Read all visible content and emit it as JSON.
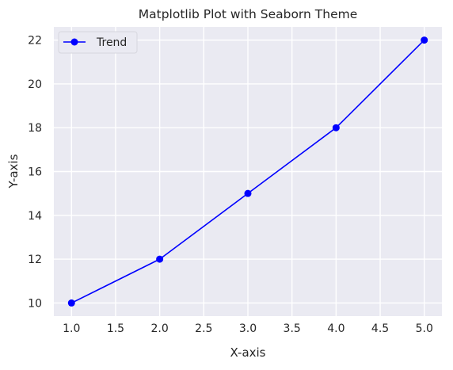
{
  "chart_data": {
    "type": "line",
    "title": "Matplotlib Plot with Seaborn Theme",
    "xlabel": "X-axis",
    "ylabel": "Y-axis",
    "x": [
      1,
      2,
      3,
      4,
      5
    ],
    "series": [
      {
        "name": "Trend",
        "values": [
          10,
          12,
          15,
          18,
          22
        ],
        "color": "#0000ff",
        "marker": "circle"
      }
    ],
    "xlim": [
      0.8,
      5.2
    ],
    "ylim": [
      9.4,
      22.6
    ],
    "xticks": [
      "1.0",
      "1.5",
      "2.0",
      "2.5",
      "3.0",
      "3.5",
      "4.0",
      "4.5",
      "5.0"
    ],
    "yticks": [
      "10",
      "12",
      "14",
      "16",
      "18",
      "20",
      "22"
    ],
    "grid": true,
    "legend_position": "top-left",
    "background_color": "#eaeaf2",
    "grid_color": "#ffffff"
  }
}
